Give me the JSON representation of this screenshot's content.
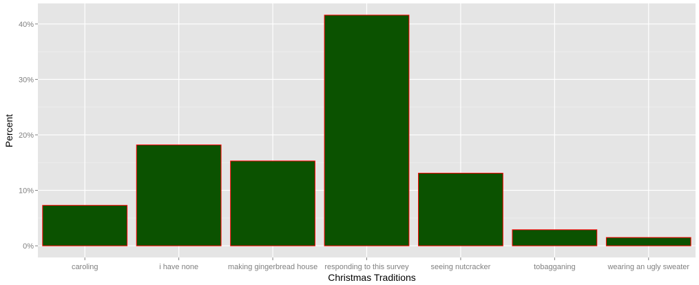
{
  "chart_data": {
    "type": "bar",
    "title": "",
    "xlabel": "Christmas Traditions",
    "ylabel": "Percent",
    "categories": [
      "caroling",
      "i have none",
      "making gingerbread house",
      "responding to this survey",
      "seeing nutcracker",
      "tobagganing",
      "wearing an ugly sweater"
    ],
    "values": [
      7.3,
      18.2,
      15.3,
      41.6,
      13.1,
      2.9,
      1.5
    ],
    "unit": "%",
    "ylim": [
      -2.1,
      43.7
    ],
    "yticks": [
      0,
      10,
      20,
      30,
      40
    ],
    "ytick_labels": [
      "0%",
      "10%",
      "20%",
      "30%",
      "40%"
    ],
    "grid": true,
    "legend": "none",
    "colors": {
      "bar_fill": "#0b5200",
      "bar_outline": "#ff0000",
      "panel_background": "#e5e5e5",
      "grid_major": "#ffffff",
      "grid_minor": "#f2f2f2"
    }
  }
}
